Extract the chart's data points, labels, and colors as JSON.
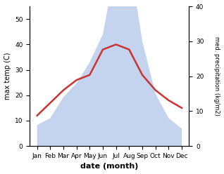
{
  "months": [
    "Jan",
    "Feb",
    "Mar",
    "Apr",
    "May",
    "Jun",
    "Jul",
    "Aug",
    "Sep",
    "Oct",
    "Nov",
    "Dec"
  ],
  "temperature": [
    12,
    17,
    22,
    26,
    28,
    38,
    40,
    38,
    28,
    22,
    18,
    15
  ],
  "precipitation": [
    6,
    8,
    14,
    18,
    24,
    32,
    52,
    54,
    30,
    15,
    8,
    5
  ],
  "temp_color": "#c93333",
  "precip_color_fill": "#c5d4ee",
  "ylabel_left": "max temp (C)",
  "ylabel_right": "med. precipitation (kg/m2)",
  "xlabel": "date (month)",
  "ylim_left": [
    0,
    55
  ],
  "ylim_right": [
    0,
    40
  ],
  "yticks_left": [
    0,
    10,
    20,
    30,
    40,
    50
  ],
  "yticks_right": [
    0,
    10,
    20,
    30,
    40
  ],
  "background_color": "#ffffff"
}
